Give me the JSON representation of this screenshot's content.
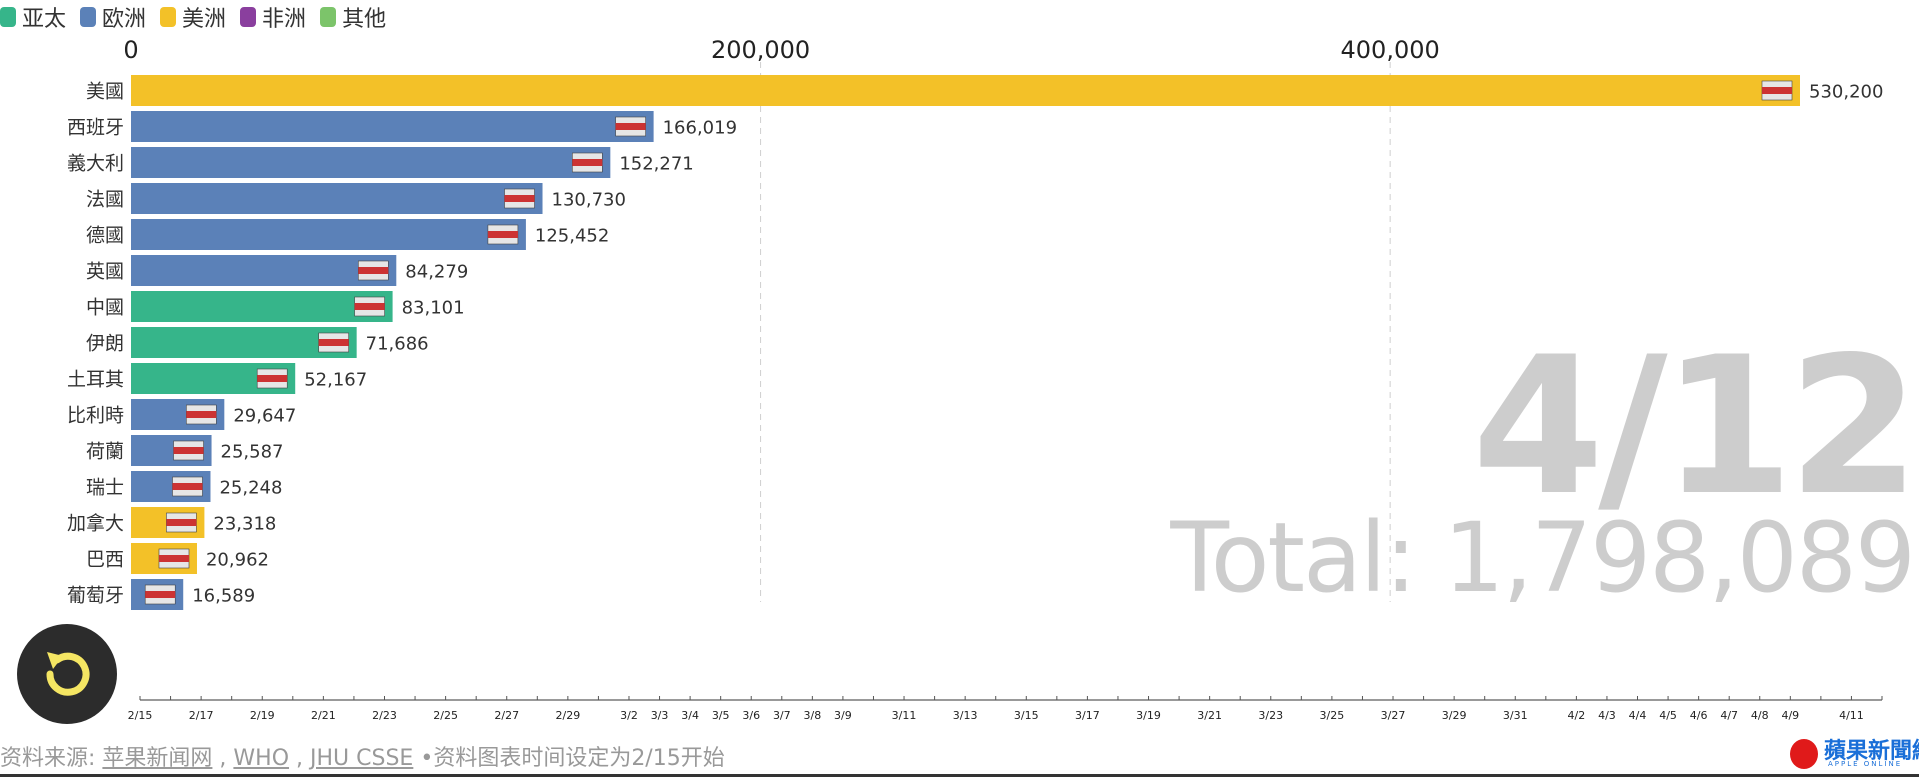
{
  "legend": [
    {
      "label": "亚太",
      "color": "#36b58a"
    },
    {
      "label": "欧洲",
      "color": "#5b81b8"
    },
    {
      "label": "美洲",
      "color": "#f3c128"
    },
    {
      "label": "非洲",
      "color": "#8a3f9e"
    },
    {
      "label": "其他",
      "color": "#7cc46a"
    }
  ],
  "chart_data": {
    "type": "bar",
    "orientation": "horizontal",
    "xlim": [
      0,
      560000
    ],
    "x_ticks": [
      0,
      200000,
      400000
    ],
    "x_tick_labels": [
      "0",
      "200,000",
      "400,000"
    ],
    "grid": true,
    "categories": [
      "美國",
      "西班牙",
      "義大利",
      "法國",
      "德國",
      "英國",
      "中國",
      "伊朗",
      "土耳其",
      "比利時",
      "荷蘭",
      "瑞士",
      "加拿大",
      "巴西",
      "葡萄牙"
    ],
    "values": [
      530200,
      166019,
      152271,
      130730,
      125452,
      84279,
      83101,
      71686,
      52167,
      29647,
      25587,
      25248,
      23318,
      20962,
      16589
    ],
    "value_labels": [
      "530,200",
      "166,019",
      "152,271",
      "130,730",
      "125,452",
      "84,279",
      "83,101",
      "71,686",
      "52,167",
      "29,647",
      "25,587",
      "25,248",
      "23,318",
      "20,962",
      "16,589"
    ],
    "regions": [
      "美洲",
      "欧洲",
      "欧洲",
      "欧洲",
      "欧洲",
      "欧洲",
      "亚太",
      "亚太",
      "亚太",
      "欧洲",
      "欧洲",
      "欧洲",
      "美洲",
      "美洲",
      "欧洲"
    ],
    "flag_icons": [
      "us-flag-icon",
      "spain-flag-icon",
      "italy-flag-icon",
      "france-flag-icon",
      "germany-flag-icon",
      "uk-flag-icon",
      "china-flag-icon",
      "iran-flag-icon",
      "turkey-flag-icon",
      "belgium-flag-icon",
      "netherlands-flag-icon",
      "switzerland-flag-icon",
      "canada-flag-icon",
      "brazil-flag-icon",
      "portugal-flag-icon"
    ]
  },
  "current_date": "4/12",
  "total_text": "Total: 1,798,089",
  "timeline": {
    "labels": [
      "2/15",
      "2/17",
      "2/19",
      "2/21",
      "2/23",
      "2/25",
      "2/27",
      "2/29",
      "3/2",
      "3/3",
      "3/4",
      "3/5",
      "3/6",
      "3/7",
      "3/8",
      "3/9",
      "3/11",
      "3/13",
      "3/15",
      "3/17",
      "3/19",
      "3/21",
      "3/23",
      "3/25",
      "3/27",
      "3/29",
      "3/31",
      "4/2",
      "4/3",
      "4/4",
      "4/5",
      "4/6",
      "4/7",
      "4/8",
      "4/9",
      "4/11"
    ]
  },
  "source": {
    "prefix": "资料来源: ",
    "link1": "苹果新闻网",
    "sep1": " , ",
    "link2": "WHO",
    "sep2": " , ",
    "link3": "JHU CSSE",
    "suffix": " •资料图表时间设定为2/15开始"
  },
  "logo": {
    "text": "蘋果新聞網",
    "sub": "APPLE ONLINE"
  }
}
